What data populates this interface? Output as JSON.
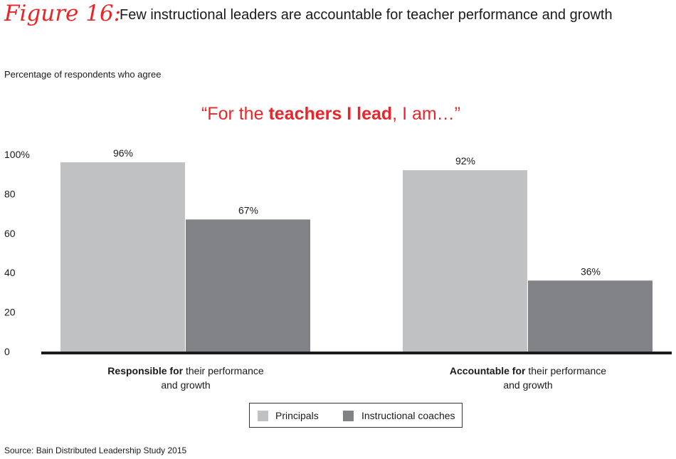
{
  "figure": {
    "label": "Figure 16:",
    "title": "Few instructional leaders are accountable for teacher performance and growth"
  },
  "subtitle": "Percentage of respondents who agree",
  "quote": {
    "open": "“For the ",
    "bold": "teachers I lead",
    "close": ", I am…”"
  },
  "source": "Source: Bain Distributed Leadership Study 2015",
  "colors": {
    "title_red": "#e8262a",
    "principals": "#c0c1c3",
    "coaches": "#818285",
    "axis": "#1a1a1a"
  },
  "chart_data": {
    "type": "bar",
    "categories": [
      {
        "bold": "Responsible for",
        "rest_line1": " their performance",
        "line2": "and growth"
      },
      {
        "bold": "Accountable for",
        "rest_line1": " their performance",
        "line2": "and growth"
      }
    ],
    "series": [
      {
        "name": "Principals",
        "values": [
          96,
          92
        ],
        "labels": [
          "96%",
          "92%"
        ]
      },
      {
        "name": "Instructional coaches",
        "values": [
          67,
          36
        ],
        "labels": [
          "67%",
          "36%"
        ]
      }
    ],
    "ylim": [
      0,
      100
    ],
    "yticks": [
      {
        "value": 0,
        "label": "0"
      },
      {
        "value": 20,
        "label": "20"
      },
      {
        "value": 40,
        "label": "40"
      },
      {
        "value": 60,
        "label": "60"
      },
      {
        "value": 80,
        "label": "80"
      },
      {
        "value": 100,
        "label": "100%"
      }
    ],
    "grid": false,
    "legend_position": "bottom-center"
  }
}
